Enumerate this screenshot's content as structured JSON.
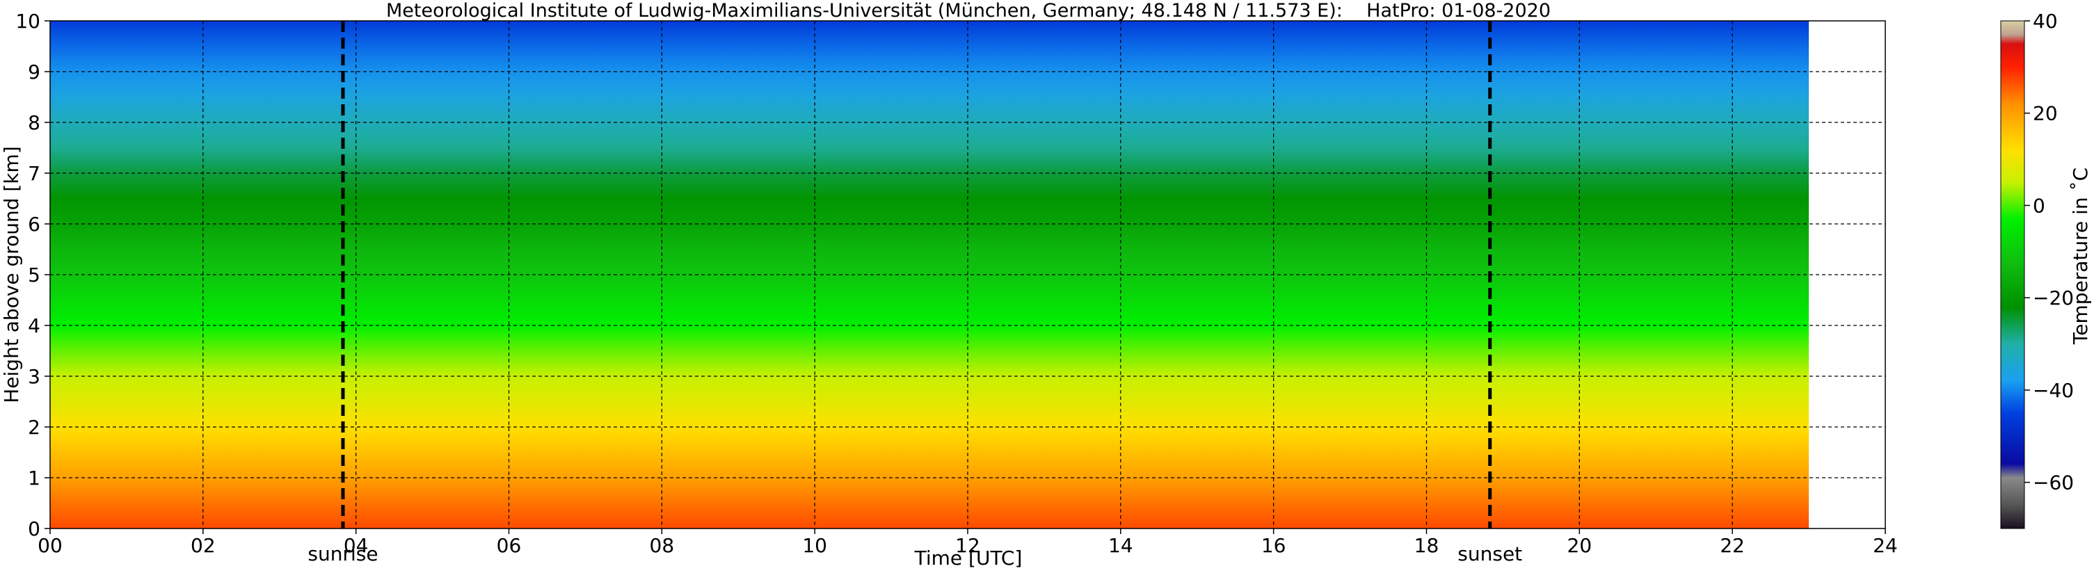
{
  "chart_data": {
    "type": "heatmap",
    "title": "Meteorological Institute of Ludwig-Maximilians-Universität (München, Germany; 48.148 N / 11.573 E):    HatPro: 01-08-2020",
    "xlabel": "Time [UTC]",
    "ylabel": "Height above ground [km]",
    "xlim": [
      0,
      24
    ],
    "ylim": [
      0,
      10
    ],
    "data_end_time": 23,
    "x_ticks": [
      0,
      2,
      4,
      6,
      8,
      10,
      12,
      14,
      16,
      18,
      20,
      22,
      24
    ],
    "x_tick_labels": [
      "00",
      "02",
      "04",
      "06",
      "08",
      "10",
      "12",
      "14",
      "16",
      "18",
      "20",
      "22",
      "24"
    ],
    "y_ticks": [
      0,
      1,
      2,
      3,
      4,
      5,
      6,
      7,
      8,
      9,
      10
    ],
    "y_tick_labels": [
      "0",
      "1",
      "2",
      "3",
      "4",
      "5",
      "6",
      "7",
      "8",
      "9",
      "10"
    ],
    "grid": true,
    "markers": [
      {
        "label": "sunrise",
        "time": 3.83
      },
      {
        "label": "sunset",
        "time": 18.83
      }
    ],
    "temperature_profile": {
      "heights_km": [
        0,
        0.5,
        1,
        1.5,
        2,
        2.5,
        3,
        3.5,
        4,
        4.5,
        5,
        5.5,
        6,
        6.5,
        7,
        7.5,
        8,
        8.5,
        9,
        9.5,
        10
      ],
      "temperature_c": [
        27,
        24,
        20,
        16,
        12,
        8,
        5,
        1,
        -3,
        -7,
        -11,
        -14,
        -18,
        -21,
        -25,
        -29,
        -32,
        -36,
        -39,
        -42,
        -46
      ]
    },
    "colorbar": {
      "label": "Temperature in ˚C",
      "range": [
        -70,
        40
      ],
      "ticks": [
        40,
        20,
        0,
        -20,
        -40,
        -60
      ],
      "tick_labels": [
        "40",
        "20",
        "0",
        "−20",
        "−40",
        "−60"
      ],
      "stops": [
        {
          "value": -70,
          "color": "#1a1020"
        },
        {
          "value": -65,
          "color": "#555555"
        },
        {
          "value": -59,
          "color": "#8a8a8a"
        },
        {
          "value": -56,
          "color": "#0a0aa0"
        },
        {
          "value": -45,
          "color": "#0040e0"
        },
        {
          "value": -38,
          "color": "#1aa0f0"
        },
        {
          "value": -30,
          "color": "#20b0a8"
        },
        {
          "value": -22,
          "color": "#009000"
        },
        {
          "value": -12,
          "color": "#10c010"
        },
        {
          "value": -3,
          "color": "#00f000"
        },
        {
          "value": 5,
          "color": "#c8f000"
        },
        {
          "value": 12,
          "color": "#ffe000"
        },
        {
          "value": 22,
          "color": "#ff9000"
        },
        {
          "value": 30,
          "color": "#ff2000"
        },
        {
          "value": 35,
          "color": "#d81010"
        },
        {
          "value": 37,
          "color": "#c0a090"
        },
        {
          "value": 40,
          "color": "#d8d0a0"
        }
      ]
    }
  }
}
